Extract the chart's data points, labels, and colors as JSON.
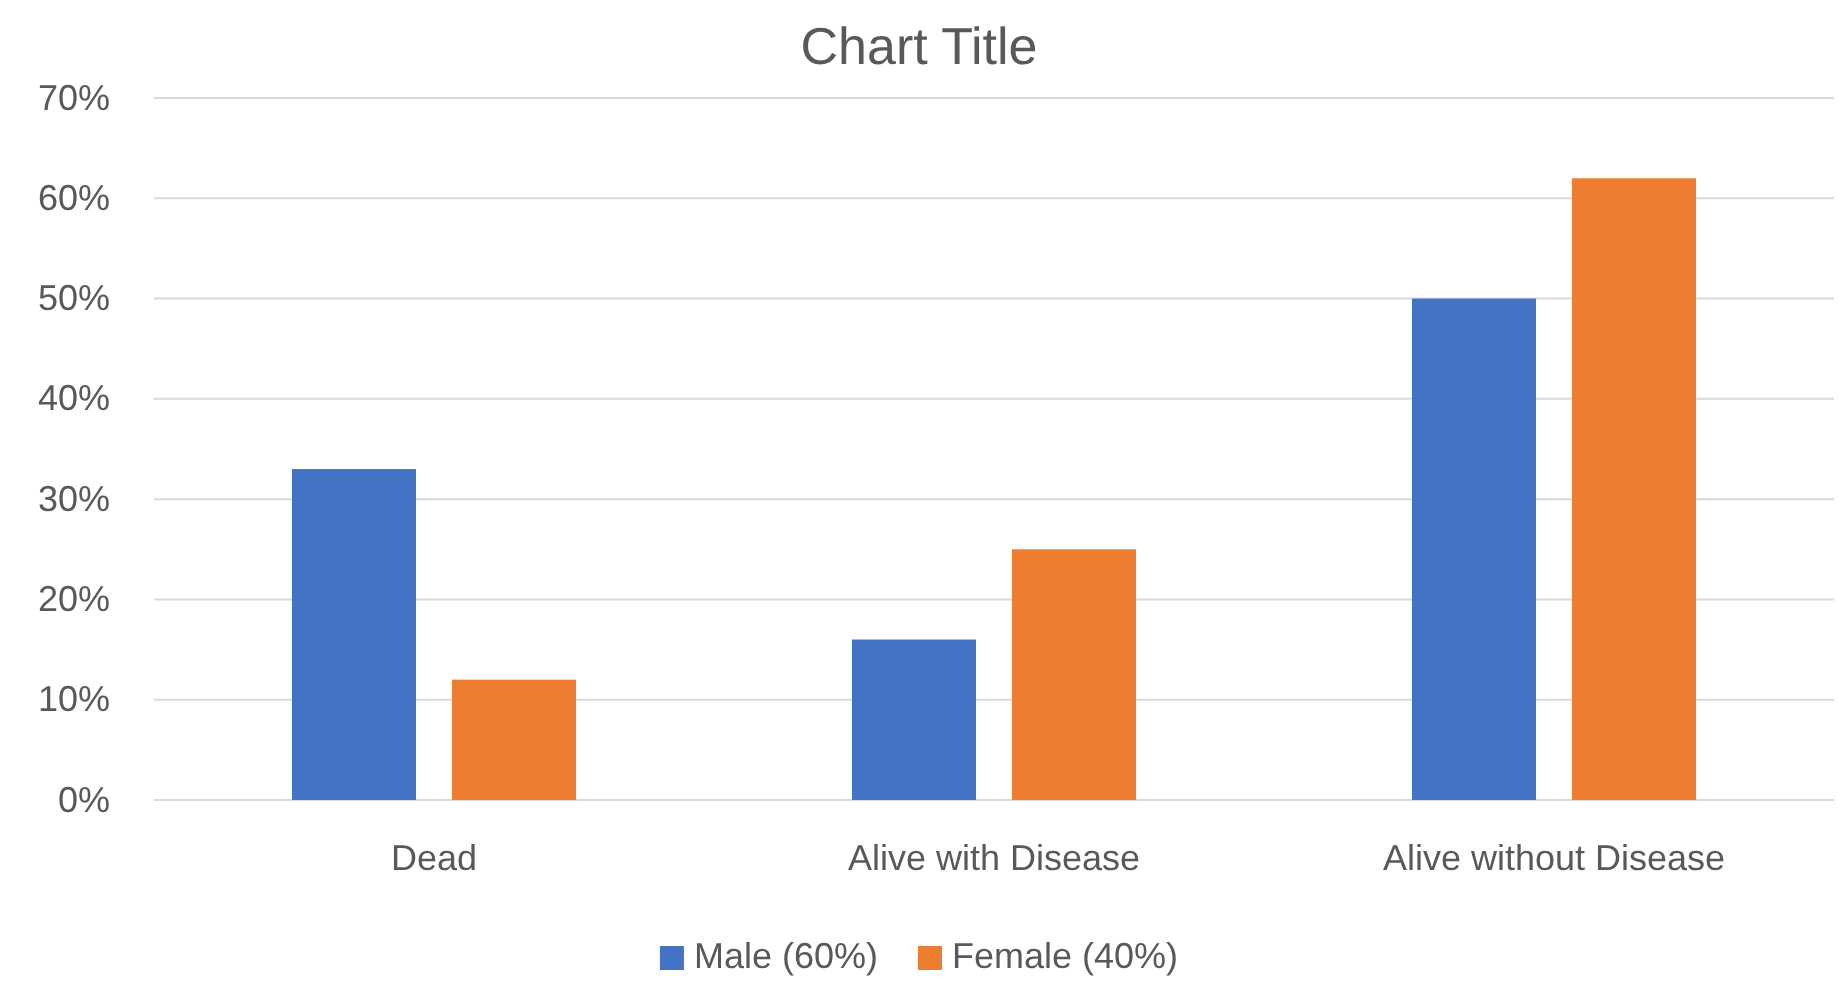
{
  "chart_data": {
    "type": "bar",
    "title": "Chart Title",
    "categories": [
      "Dead",
      "Alive with Disease",
      "Alive without Disease"
    ],
    "series": [
      {
        "name": "Male (60%)",
        "color": "#4472c4",
        "values": [
          33,
          16,
          50
        ]
      },
      {
        "name": "Female (40%)",
        "color": "#ed7d31",
        "values": [
          12,
          25,
          62
        ]
      }
    ],
    "ylim": [
      0,
      70
    ],
    "yticks": [
      {
        "value": 0,
        "label": "0%"
      },
      {
        "value": 10,
        "label": "10%"
      },
      {
        "value": 20,
        "label": "20%"
      },
      {
        "value": 30,
        "label": "30%"
      },
      {
        "value": 40,
        "label": "40%"
      },
      {
        "value": 50,
        "label": "50%"
      },
      {
        "value": 60,
        "label": "60%"
      },
      {
        "value": 70,
        "label": "70%"
      }
    ],
    "grid": "y",
    "legend": "bottom"
  }
}
